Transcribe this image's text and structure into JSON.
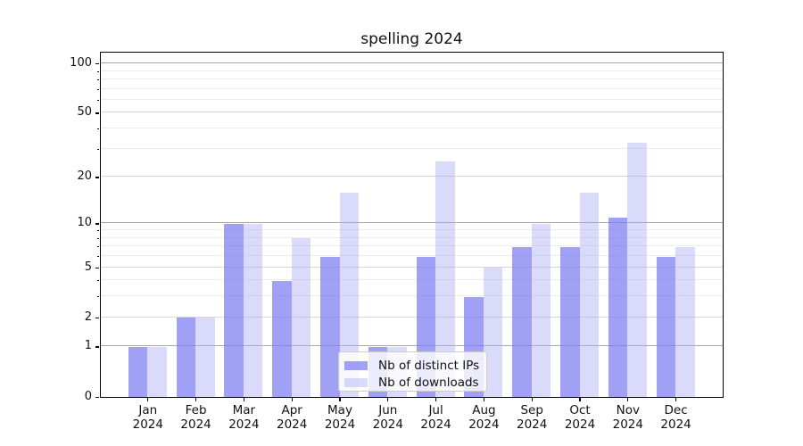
{
  "chart_data": {
    "type": "bar",
    "title": "spelling 2024",
    "x_tick_months": [
      "Jan",
      "Feb",
      "Mar",
      "Apr",
      "May",
      "Jun",
      "Jul",
      "Aug",
      "Sep",
      "Oct",
      "Nov",
      "Dec"
    ],
    "x_tick_year": "2024",
    "series": [
      {
        "name": "Nb of distinct IPs",
        "color": "rgba(124,124,241,0.72)",
        "values": [
          1,
          2,
          10,
          4,
          6,
          1,
          6,
          3,
          7,
          7,
          11,
          6
        ]
      },
      {
        "name": "Nb of downloads",
        "color": "rgba(168,168,243,0.42)",
        "values": [
          1,
          2,
          10,
          8,
          16,
          1,
          25,
          5,
          10,
          16,
          33,
          7
        ]
      }
    ],
    "y_scale": "log1p",
    "y_tick_labels": [
      0,
      1,
      2,
      5,
      10,
      20,
      50,
      100
    ],
    "y_minor_gridlines": [
      3,
      4,
      6,
      7,
      8,
      9,
      30,
      40,
      60,
      70,
      80,
      90
    ],
    "ylim": [
      0,
      115
    ],
    "grid": true,
    "legend_position": "lower center",
    "colors": {
      "grid_decade": "#a9a9a9",
      "grid_major": "#d6d6d6",
      "grid_minor": "#ececec",
      "axis": "#000000",
      "text": "#111111",
      "legend_border": "#cccccc",
      "legend_bg": "rgba(255,255,255,0.8)"
    }
  }
}
